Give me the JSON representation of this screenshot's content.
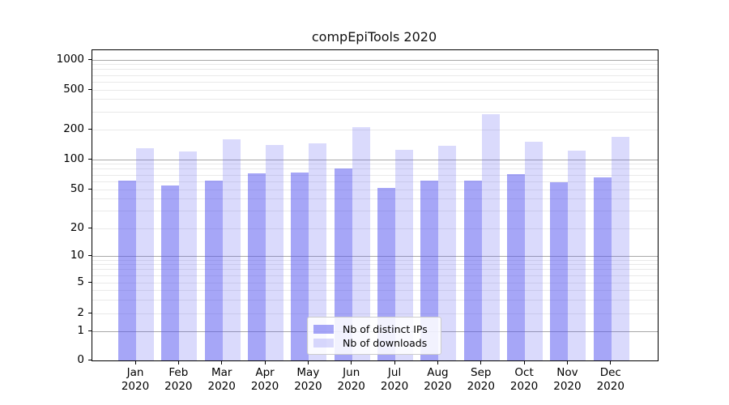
{
  "chart_data": {
    "type": "bar",
    "title": "compEpiTools 2020",
    "categories": [
      "Jan",
      "Feb",
      "Mar",
      "Apr",
      "May",
      "Jun",
      "Jul",
      "Aug",
      "Sep",
      "Oct",
      "Nov",
      "Dec"
    ],
    "year_label": "2020",
    "series": [
      {
        "name": "Nb of distinct IPs",
        "key": "distinct-ips",
        "color_hex_on_white": "#a8a8f7",
        "color_rgba": "rgba(85,85,240,0.52)",
        "values": [
          62,
          55,
          61,
          73,
          74,
          82,
          52,
          61,
          61,
          71,
          59,
          66
        ]
      },
      {
        "name": "Nb of downloads",
        "key": "downloads",
        "color_hex_on_white": "#d9d9fb",
        "color_rgba": "rgba(85,85,240,0.22)",
        "values": [
          130,
          120,
          160,
          140,
          145,
          210,
          126,
          138,
          285,
          150,
          124,
          168
        ]
      }
    ],
    "xlabel": "",
    "ylabel": "",
    "yscale": "log-style with 0 baseline",
    "ytick_values": [
      0,
      1,
      2,
      5,
      10,
      20,
      50,
      100,
      200,
      500,
      1000
    ],
    "ytick_labels": [
      "0",
      "1",
      "2",
      "5",
      "10",
      "20",
      "50",
      "100",
      "200",
      "500",
      "1000"
    ],
    "minor_grid_values": [
      3,
      4,
      6,
      7,
      8,
      9,
      30,
      40,
      60,
      70,
      80,
      90,
      300,
      400,
      600,
      700,
      800,
      900
    ],
    "ylim": [
      0,
      1260
    ],
    "grid": "horizontal only",
    "legend_position": "inside plot, lower-center-left",
    "colors": {
      "grid_major": "#a8a8a8",
      "grid_minor": "#e9e9e9",
      "axis": "#000000",
      "background": "#ffffff",
      "text": "#000000"
    }
  }
}
